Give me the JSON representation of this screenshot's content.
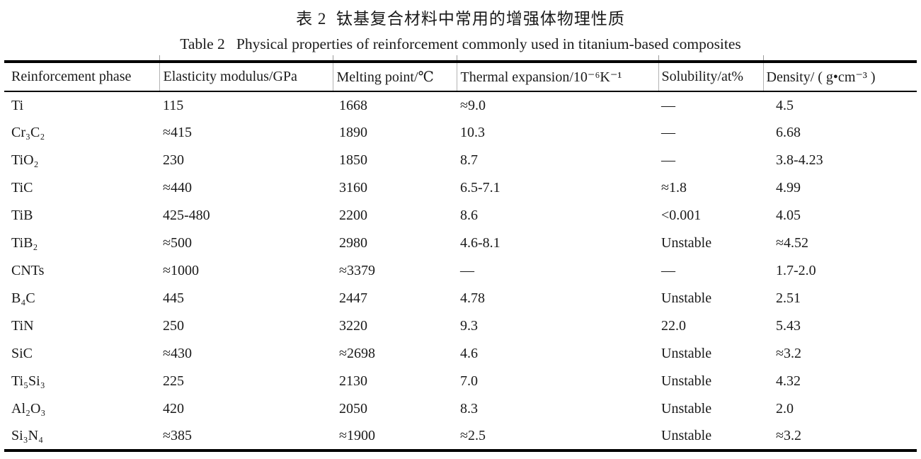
{
  "caption": {
    "zh": "表 2  钛基复合材料中常用的增强体物理性质",
    "en": "Table 2   Physical properties of reinforcement commonly used in titanium-based composites"
  },
  "table": {
    "columns": [
      "Reinforcement phase",
      "Elasticity modulus/GPa",
      "Melting point/℃",
      "Thermal expansion/10⁻⁶K⁻¹",
      "Solubility/at%",
      "Density/ ( g•cm⁻³ )"
    ],
    "rows": [
      [
        "Ti",
        "115",
        "1668",
        "≈9.0",
        "—",
        "4.5"
      ],
      [
        "Cr₃C₂",
        "≈415",
        "1890",
        "10.3",
        "—",
        "6.68"
      ],
      [
        "TiO₂",
        "230",
        "1850",
        "8.7",
        "—",
        "3.8-4.23"
      ],
      [
        "TiC",
        "≈440",
        "3160",
        "6.5-7.1",
        "≈1.8",
        "4.99"
      ],
      [
        "TiB",
        "425-480",
        "2200",
        "8.6",
        "<0.001",
        "4.05"
      ],
      [
        "TiB₂",
        "≈500",
        "2980",
        "4.6-8.1",
        "Unstable",
        "≈4.52"
      ],
      [
        "CNTs",
        "≈1000",
        "≈3379",
        "—",
        "—",
        "1.7-2.0"
      ],
      [
        "B₄C",
        "445",
        "2447",
        "4.78",
        "Unstable",
        "2.51"
      ],
      [
        "TiN",
        "250",
        "3220",
        "9.3",
        "22.0",
        "5.43"
      ],
      [
        "SiC",
        "≈430",
        "≈2698",
        "4.6",
        "Unstable",
        "≈3.2"
      ],
      [
        "Ti₅Si₃",
        "225",
        "2130",
        "7.0",
        "Unstable",
        "4.32"
      ],
      [
        "Al₂O₃",
        "420",
        "2050",
        "8.3",
        "Unstable",
        "2.0"
      ],
      [
        "Si₃N₄",
        "≈385",
        "≈1900",
        "≈2.5",
        "Unstable",
        "≈3.2"
      ]
    ]
  }
}
